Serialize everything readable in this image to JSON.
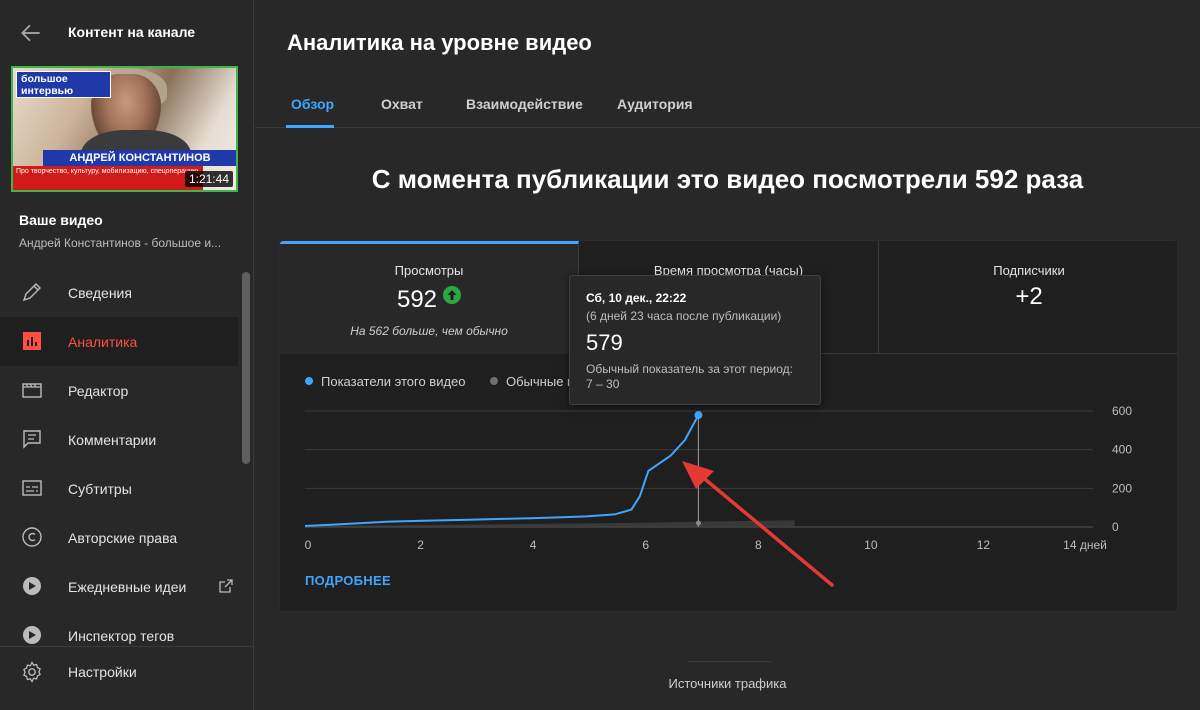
{
  "sidebar": {
    "title": "Контент на канале",
    "thumbnail": {
      "badge_text": "большое интервью",
      "name_band": "АНДРЕЙ КОНСТАНТИНОВ",
      "red_band": "Про творчество, культуру, мобилизацию, спецоперацию",
      "duration": "1:21:44"
    },
    "your_video_label": "Ваше видео",
    "video_title": "Андрей Константинов - большое и...",
    "items": [
      {
        "label": "Сведения",
        "icon": "pencil-icon"
      },
      {
        "label": "Аналитика",
        "icon": "analytics-icon",
        "active": true
      },
      {
        "label": "Редактор",
        "icon": "editor-icon"
      },
      {
        "label": "Комментарии",
        "icon": "comments-icon"
      },
      {
        "label": "Субтитры",
        "icon": "subtitles-icon"
      },
      {
        "label": "Авторские права",
        "icon": "copyright-icon"
      },
      {
        "label": "Ежедневные идеи",
        "icon": "ideas-icon"
      },
      {
        "label": "Инспектор тегов",
        "icon": "tags-icon"
      }
    ],
    "settings_label": "Настройки"
  },
  "main": {
    "page_title": "Аналитика на уровне видео",
    "tabs": [
      {
        "label": "Обзор",
        "active": true
      },
      {
        "label": "Охват"
      },
      {
        "label": "Взаимодействие"
      },
      {
        "label": "Аудитория"
      }
    ],
    "headline": "С момента публикации это видео посмотрели 592 раза",
    "metrics": [
      {
        "label": "Просмотры",
        "value": "592",
        "note": "На 562 больше, чем обычно"
      },
      {
        "label": "Время просмотра (часы)",
        "value": ""
      },
      {
        "label": "Подписчики",
        "value": "+2"
      }
    ],
    "legend": {
      "this_video": "Показатели этого видео",
      "typical": "Обычные п"
    },
    "more_link": "ПОДРОБНЕЕ",
    "tooltip": {
      "date": "Сб, 10 дек., 22:22",
      "since": "(6 дней 23 часа после публикации)",
      "value": "579",
      "typical_label": "Обычный показатель за этот период:",
      "typical_range": "7 – 30"
    },
    "traffic_sources": "Источники трафика"
  },
  "colors": {
    "accent": "#3ea6ff",
    "active_nav": "#ff4e45",
    "up": "#2ba640",
    "annotation_arrow": "#e53935"
  },
  "chart_data": {
    "type": "line",
    "x_unit": "дней",
    "x_ticks": [
      "0",
      "2",
      "4",
      "6",
      "8",
      "10",
      "12",
      "14 дней"
    ],
    "y_ticks": [
      "600",
      "400",
      "200",
      "0"
    ],
    "xlim": [
      0,
      14
    ],
    "ylim": [
      0,
      600
    ],
    "series": [
      {
        "name": "Показатели этого видео",
        "color": "#3ea6ff",
        "x": [
          0,
          0.5,
          1,
          1.5,
          2,
          2.5,
          3,
          3.5,
          4,
          4.5,
          5,
          5.5,
          5.8,
          5.95,
          6.1,
          6.25,
          6.5,
          6.75,
          6.99
        ],
        "y": [
          5,
          12,
          20,
          28,
          32,
          35,
          38,
          42,
          45,
          50,
          55,
          65,
          90,
          160,
          290,
          320,
          370,
          450,
          579
        ]
      },
      {
        "name": "Обычные",
        "color": "#5f5f5f",
        "x": [
          0,
          2,
          4,
          6,
          7,
          8,
          8.7
        ],
        "y": [
          4,
          10,
          16,
          22,
          28,
          32,
          35
        ]
      }
    ],
    "hover_x": 6.99,
    "hover_y": 579
  }
}
